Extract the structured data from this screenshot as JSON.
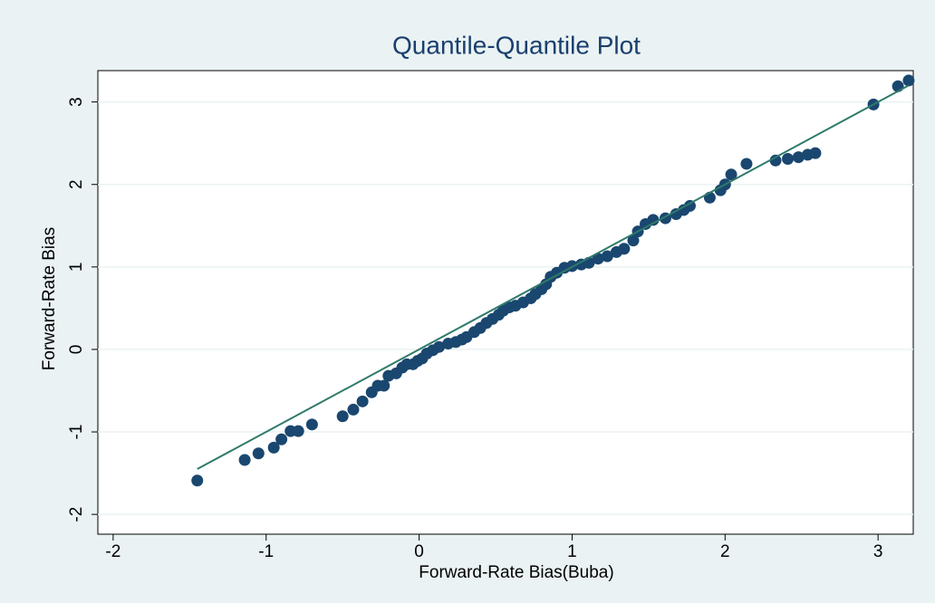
{
  "chart_data": {
    "type": "scatter",
    "title": "Quantile-Quantile Plot",
    "xlabel": "Forward-Rate Bias(Buba)",
    "ylabel": "Forward-Rate Bias",
    "xlim": [
      -2.1,
      3.23
    ],
    "ylim": [
      -2.24,
      3.38
    ],
    "xticks": [
      -2,
      -1,
      0,
      1,
      2,
      3
    ],
    "yticks": [
      -2,
      -1,
      0,
      1,
      2,
      3
    ],
    "grid": true,
    "color": "#1a476f",
    "x": [
      -1.45,
      -1.14,
      -1.05,
      -0.95,
      -0.9,
      -0.84,
      -0.79,
      -0.7,
      -0.5,
      -0.43,
      -0.37,
      -0.31,
      -0.27,
      -0.23,
      -0.2,
      -0.15,
      -0.11,
      -0.08,
      -0.04,
      -0.01,
      0.02,
      0.05,
      0.09,
      0.13,
      0.19,
      0.24,
      0.28,
      0.31,
      0.36,
      0.4,
      0.44,
      0.48,
      0.52,
      0.55,
      0.59,
      0.63,
      0.68,
      0.73,
      0.76,
      0.8,
      0.83,
      0.86,
      0.9,
      0.95,
      1.0,
      1.06,
      1.11,
      1.17,
      1.23,
      1.29,
      1.34,
      1.4,
      1.43,
      1.48,
      1.53,
      1.61,
      1.68,
      1.73,
      1.77,
      1.9,
      1.97,
      2.0,
      2.04,
      2.14,
      2.33,
      2.41,
      2.48,
      2.54,
      2.59,
      2.97,
      3.13,
      3.2
    ],
    "values": [
      -1.59,
      -1.34,
      -1.26,
      -1.19,
      -1.09,
      -0.99,
      -0.99,
      -0.91,
      -0.81,
      -0.73,
      -0.63,
      -0.52,
      -0.44,
      -0.44,
      -0.32,
      -0.29,
      -0.22,
      -0.18,
      -0.18,
      -0.14,
      -0.11,
      -0.05,
      -0.01,
      0.03,
      0.07,
      0.09,
      0.12,
      0.15,
      0.21,
      0.26,
      0.32,
      0.37,
      0.42,
      0.47,
      0.51,
      0.53,
      0.57,
      0.62,
      0.67,
      0.73,
      0.79,
      0.88,
      0.93,
      0.99,
      1.01,
      1.03,
      1.05,
      1.1,
      1.13,
      1.18,
      1.22,
      1.32,
      1.43,
      1.52,
      1.57,
      1.59,
      1.64,
      1.69,
      1.74,
      1.84,
      1.93,
      2.0,
      2.12,
      2.25,
      2.29,
      2.31,
      2.33,
      2.36,
      2.38,
      2.97,
      3.19,
      3.26
    ],
    "reference_line": {
      "color": "#2f7a6b",
      "x": [
        -1.45,
        3.2
      ],
      "y": [
        -1.45,
        3.2
      ]
    }
  }
}
